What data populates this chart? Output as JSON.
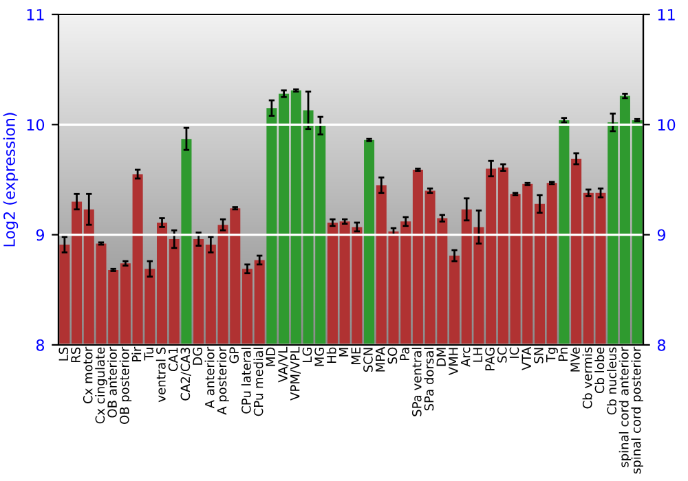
{
  "chart_data": {
    "type": "bar",
    "ylabel": "Log2 (expression)",
    "categories": [
      "LS",
      "RS",
      "Cx motor",
      "Cx cingulate",
      "OB anterior",
      "OB posterior",
      "Pir",
      "Tu",
      "ventral S",
      "CA1",
      "CA2/CA3",
      "DG",
      "A anterior",
      "A posterior",
      "GP",
      "CPu lateral",
      "CPu medial",
      "MD",
      "VA/VL",
      "VPM/VPL",
      "LG",
      "MG",
      "Hb",
      "M",
      "ME",
      "SCN",
      "MPA",
      "SO",
      "Pa",
      "SPa ventral",
      "SPa dorsal",
      "DM",
      "VMH",
      "Arc",
      "LH",
      "PAG",
      "SC",
      "IC",
      "VTA",
      "SN",
      "Tg",
      "Pn",
      "MVe",
      "Cb vermis",
      "Cb lobe",
      "Cb nucleus",
      "spinal cord anterior",
      "spinal cord posterior"
    ],
    "values": [
      8.91,
      9.3,
      9.23,
      8.92,
      8.68,
      8.74,
      9.55,
      8.69,
      9.11,
      8.96,
      9.87,
      8.96,
      8.91,
      9.09,
      9.24,
      8.69,
      8.77,
      10.15,
      10.28,
      10.31,
      10.13,
      9.99,
      9.11,
      9.12,
      9.07,
      9.86,
      9.45,
      9.03,
      9.12,
      9.59,
      9.4,
      9.15,
      8.81,
      9.23,
      9.07,
      9.6,
      9.61,
      9.37,
      9.46,
      9.28,
      9.47,
      10.04,
      9.69,
      9.38,
      9.38,
      10.02,
      10.26,
      10.04
    ],
    "errors": [
      0.07,
      0.07,
      0.14,
      0.01,
      0.01,
      0.02,
      0.04,
      0.07,
      0.04,
      0.08,
      0.1,
      0.06,
      0.07,
      0.05,
      0.01,
      0.04,
      0.04,
      0.07,
      0.03,
      0.01,
      0.17,
      0.08,
      0.03,
      0.02,
      0.04,
      0.01,
      0.07,
      0.03,
      0.04,
      0.01,
      0.02,
      0.03,
      0.05,
      0.1,
      0.15,
      0.07,
      0.03,
      0.01,
      0.01,
      0.08,
      0.01,
      0.02,
      0.05,
      0.03,
      0.04,
      0.08,
      0.02,
      0.01
    ],
    "colors": [
      "#b03232",
      "#b03232",
      "#b03232",
      "#b03232",
      "#b03232",
      "#b03232",
      "#b03232",
      "#b03232",
      "#b03232",
      "#b03232",
      "#2f9a2f",
      "#b03232",
      "#b03232",
      "#b03232",
      "#b03232",
      "#b03232",
      "#b03232",
      "#2f9a2f",
      "#2f9a2f",
      "#2f9a2f",
      "#2f9a2f",
      "#2f9a2f",
      "#b03232",
      "#b03232",
      "#b03232",
      "#2f9a2f",
      "#b03232",
      "#b03232",
      "#b03232",
      "#b03232",
      "#b03232",
      "#b03232",
      "#b03232",
      "#b03232",
      "#b03232",
      "#b03232",
      "#b03232",
      "#b03232",
      "#b03232",
      "#b03232",
      "#b03232",
      "#2f9a2f",
      "#b03232",
      "#b03232",
      "#b03232",
      "#2f9a2f",
      "#2f9a2f",
      "#2f9a2f"
    ],
    "ylim": [
      8,
      11
    ],
    "yticks": [
      8,
      9,
      10,
      11
    ],
    "y2lim": [
      8,
      11
    ],
    "y2ticks": [
      8,
      9,
      10,
      11
    ],
    "grid": "y"
  }
}
